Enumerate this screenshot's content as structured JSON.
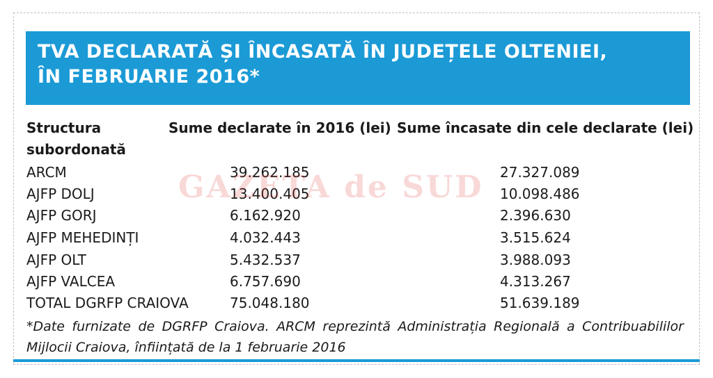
{
  "title": {
    "line1": "TVA DECLARATĂ ȘI ÎNCASATĂ ÎN JUDEȚELE OLTENIEI,",
    "line2": "ÎN FEBRUARIE 2016*"
  },
  "headers": {
    "structura_line1": "Structura",
    "structura_line2": "subordonată",
    "declarate": "Sume declarate în 2016 (lei)",
    "incasate": "Sume încasate din cele declarate (lei)"
  },
  "rows": [
    {
      "name": "ARCM",
      "declarate": "39.262.185",
      "incasate": "27.327.089"
    },
    {
      "name": "AJFP DOLJ",
      "declarate": "13.400.405",
      "incasate": "10.098.486"
    },
    {
      "name": "AJFP GORJ",
      "declarate": "6.162.920",
      "incasate": "2.396.630"
    },
    {
      "name": "AJFP MEHEDINȚI",
      "declarate": "4.032.443",
      "incasate": "3.515.624"
    },
    {
      "name": "AJFP OLT",
      "declarate": "5.432.537",
      "incasate": "3.988.093"
    },
    {
      "name": "AJFP VALCEA",
      "declarate": "6.757.690",
      "incasate": "4.313.267"
    },
    {
      "name": "TOTAL DGRFP CRAIOVA",
      "declarate": "75.048.180",
      "incasate": "51.639.189"
    }
  ],
  "footnote": "*Date furnizate de DGRFP Craiova. ARCM reprezintă Administrația Regională a Contribuabililor Mijlocii Craiova, înființată de la 1 februarie 2016",
  "watermark": "GAZETA de SUD",
  "colors": {
    "accent": "#1b9ad6",
    "text": "#1a1a1a",
    "watermark": "#dc2828"
  }
}
